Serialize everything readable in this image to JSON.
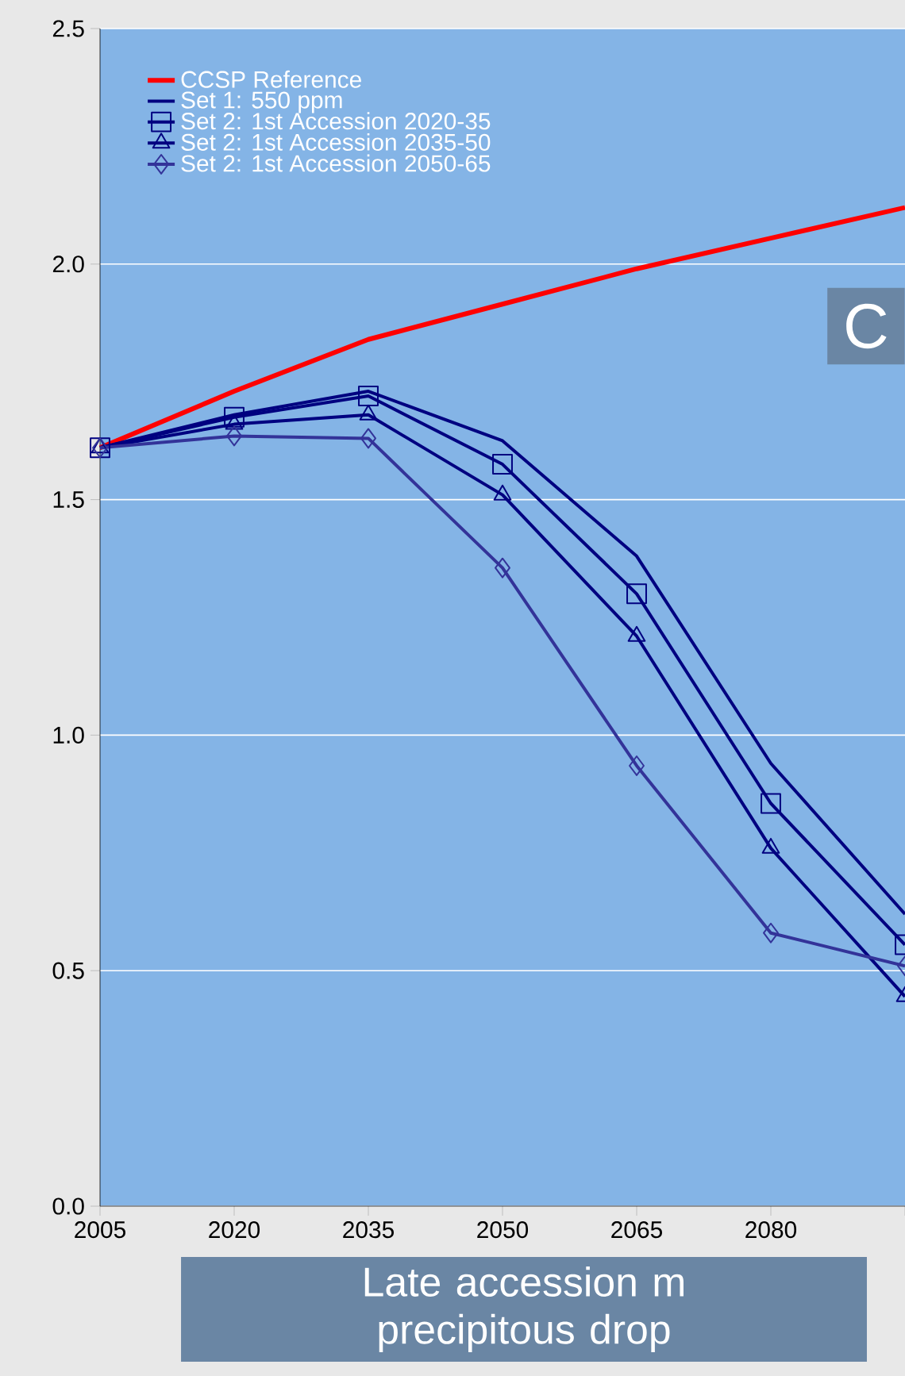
{
  "chart_data": {
    "type": "line",
    "categories": [
      "2005",
      "2020",
      "2035",
      "2050",
      "2065",
      "2080",
      null
    ],
    "series": [
      {
        "name": "CCSP Reference",
        "color": "#ff0000",
        "marker": "none",
        "values": [
          1.61,
          1.73,
          1.84,
          1.915,
          1.99,
          2.055,
          2.12
        ]
      },
      {
        "name": "Set 1:  550 ppm",
        "color": "#000080",
        "marker": "none",
        "values": [
          1.61,
          1.68,
          1.73,
          1.625,
          1.38,
          0.94,
          0.62
        ]
      },
      {
        "name": "Set 2:  1st Accession 2020-35",
        "color": "#000080",
        "marker": "square",
        "values": [
          1.61,
          1.675,
          1.72,
          1.575,
          1.3,
          0.855,
          0.555
        ]
      },
      {
        "name": "Set 2:  1st Accession 2035-50",
        "color": "#000080",
        "marker": "triangle",
        "values": [
          1.61,
          1.66,
          1.68,
          1.51,
          1.21,
          0.76,
          0.445
        ]
      },
      {
        "name": "Set 2:  1st Accession 2050-65",
        "color": "#333399",
        "marker": "diamond",
        "values": [
          1.61,
          1.635,
          1.63,
          1.355,
          0.935,
          0.58,
          0.51
        ]
      }
    ],
    "ylim": [
      0,
      2.5
    ],
    "yticks": [
      {
        "value": 0,
        "label": "0.0"
      },
      0.5,
      {
        "value": 1,
        "label": "1.0"
      },
      1.5,
      {
        "value": 2,
        "label": "2.0"
      },
      2.5
    ],
    "grid": "y",
    "legend": "top left",
    "line_style": "solid",
    "annotations": [
      "C",
      "Late accession m",
      "precipitous drop"
    ]
  }
}
